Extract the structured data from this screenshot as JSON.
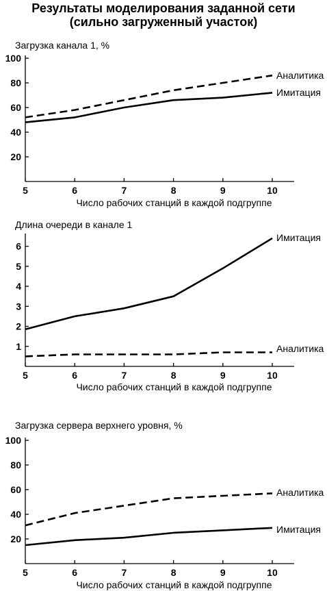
{
  "title_line1": "Результаты моделирования заданной сети",
  "title_line2": "(сильно загруженный участок)",
  "colors": {
    "line": "#000000",
    "background": "#ffffff"
  },
  "chart_data": [
    {
      "type": "line",
      "title": "Загрузка канала 1, %",
      "xlabel": "Число рабочих станций в каждой подгруппе",
      "ylabel": "",
      "x": [
        5,
        6,
        7,
        8,
        9,
        10
      ],
      "xlim": [
        5,
        10.4
      ],
      "ylim": [
        0,
        100
      ],
      "yticks": [
        20,
        40,
        60,
        80,
        100
      ],
      "grid": false,
      "series": [
        {
          "name": "Аналитика",
          "style": "dashed",
          "values": [
            52,
            58,
            66,
            74,
            80,
            86
          ]
        },
        {
          "name": "Имитация",
          "style": "solid",
          "values": [
            48,
            52,
            60,
            66,
            68,
            72
          ]
        }
      ]
    },
    {
      "type": "line",
      "title": "Длина очереди в канале 1",
      "xlabel": "Число рабочих станций в каждой подгруппе",
      "ylabel": "",
      "x": [
        5,
        6,
        7,
        8,
        9,
        10
      ],
      "xlim": [
        5,
        10.4
      ],
      "ylim": [
        0,
        6.5
      ],
      "yticks": [
        1,
        2,
        3,
        4,
        5,
        6
      ],
      "grid": false,
      "series": [
        {
          "name": "Имитация",
          "style": "solid",
          "values": [
            1.85,
            2.5,
            2.9,
            3.5,
            4.9,
            6.4
          ]
        },
        {
          "name": "Аналитика",
          "style": "dashed",
          "values": [
            0.5,
            0.6,
            0.6,
            0.6,
            0.7,
            0.7
          ]
        }
      ]
    },
    {
      "type": "line",
      "title": "Загрузка сервера верхнего уровня, %",
      "xlabel": "Число рабочих станций в каждой подгруппе",
      "ylabel": "",
      "x": [
        5,
        6,
        7,
        8,
        9,
        10
      ],
      "xlim": [
        5,
        10.4
      ],
      "ylim": [
        0,
        100
      ],
      "yticks": [
        20,
        40,
        60,
        80,
        100
      ],
      "grid": false,
      "series": [
        {
          "name": "Аналитика",
          "style": "dashed",
          "values": [
            31,
            41,
            47,
            53,
            55,
            57
          ]
        },
        {
          "name": "Имитация",
          "style": "solid",
          "values": [
            15,
            19,
            21,
            25,
            27,
            29
          ]
        }
      ]
    }
  ]
}
